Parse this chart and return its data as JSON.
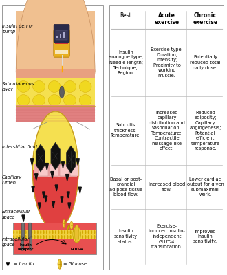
{
  "fig_width": 3.3,
  "fig_height": 4.0,
  "dpi": 100,
  "bg_color": "#ffffff",
  "border_color": "#999999",
  "table_header_row": [
    "Rest",
    "Acute\nexercise",
    "Chronic\nexercise"
  ],
  "table_rows": [
    [
      "Insulin\nanalogue type;\nNeedle length;\nTechnique;\nRegion.",
      "Exercise type;\nDuration;\nIntensity;\nProximity to\nworking\nmuscle.",
      "Potentially\nreduced total\ndaily dose."
    ],
    [
      "Subcutis\nthickness;\nTemperature.",
      "Increased\ncapillary\ndistribution and\nvasodilation;\nTemperature;\nContractile\nmassage-like\neffect.",
      "Reduced\nadiposity;\nCapillary\nangiogenesis;\nPotential\nefficient\ntemperature\nresponse."
    ],
    [
      "Basal or post-\nprandial\nadipose tissue\nblood flow.",
      "Increased blood\nflow.",
      "Lower cardiac\noutput for given\nsubmaximal\nwork."
    ],
    [
      "Insulin\nsensitivity\nstatus.",
      "Exercise-\ninduced insulin-\nindependent\nGLUT-4\ntranslocation.",
      "Improved\ninsulin\nsensitivity."
    ]
  ],
  "legend_insulin": "= Insulin",
  "legend_glucose": "= Glucose",
  "table_font_size": 4.8,
  "header_font_size": 5.5,
  "label_font_size": 4.8,
  "divider_color": "#bbbbbb"
}
